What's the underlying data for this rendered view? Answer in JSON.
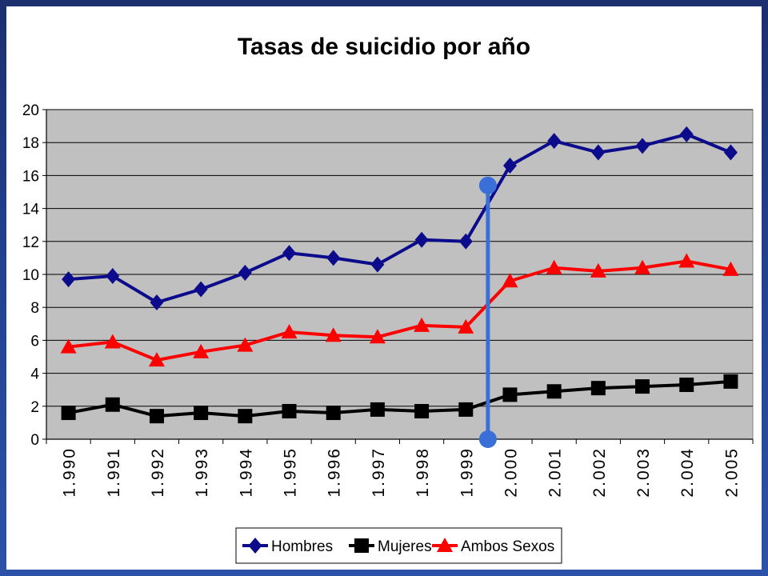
{
  "chart_data": {
    "type": "line",
    "title": "Tasas de suicidio por año",
    "xlabel": "",
    "ylabel": "",
    "categories": [
      "1.990",
      "1.991",
      "1.992",
      "1.993",
      "1.994",
      "1.995",
      "1.996",
      "1.997",
      "1.998",
      "1.999",
      "2.000",
      "2.001",
      "2.002",
      "2.003",
      "2.004",
      "2.005"
    ],
    "ylim": [
      0,
      20
    ],
    "yticks": [
      0,
      2,
      4,
      6,
      8,
      10,
      12,
      14,
      16,
      18,
      20
    ],
    "grid": true,
    "legend_position": "bottom",
    "plot_background": "#c0c0c0",
    "series": [
      {
        "name": "Hombres",
        "color": "#0b0b8c",
        "marker": "diamond",
        "values": [
          9.7,
          9.9,
          8.3,
          9.1,
          10.1,
          11.3,
          11.0,
          10.6,
          12.1,
          12.0,
          16.6,
          18.1,
          17.4,
          17.8,
          18.5,
          17.4
        ]
      },
      {
        "name": "Mujeres",
        "color": "#000000",
        "marker": "square",
        "values": [
          1.6,
          2.1,
          1.4,
          1.6,
          1.4,
          1.7,
          1.6,
          1.8,
          1.7,
          1.8,
          2.7,
          2.9,
          3.1,
          3.2,
          3.3,
          3.5
        ]
      },
      {
        "name": "Ambos Sexos",
        "color": "#ff0000",
        "marker": "triangle",
        "values": [
          5.6,
          5.9,
          4.8,
          5.3,
          5.7,
          6.5,
          6.3,
          6.2,
          6.9,
          6.8,
          9.6,
          10.4,
          10.2,
          10.4,
          10.8,
          10.3
        ]
      }
    ],
    "annotation": {
      "type": "vertical-marker",
      "between_categories": [
        "1.999",
        "2.000"
      ],
      "y_range": [
        0,
        15.4
      ],
      "color": "#3a6fd8"
    }
  }
}
